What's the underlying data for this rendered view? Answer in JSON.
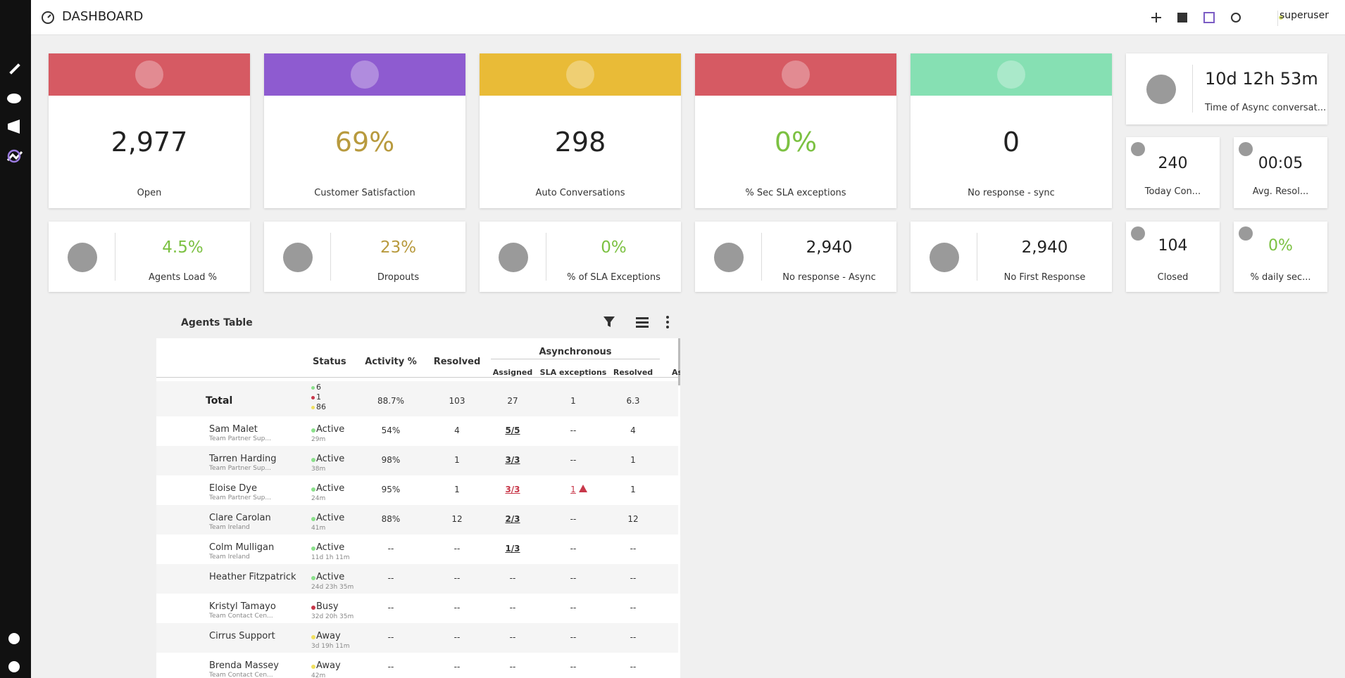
{
  "header": {
    "title": "DASHBOARD",
    "user": "superuser"
  },
  "big_cards": [
    {
      "value": "2,977",
      "label": "Open",
      "color": "#d65a63",
      "value_color": "#222222"
    },
    {
      "value": "69%",
      "label": "Customer Satisfaction",
      "color": "#8e5bd0",
      "value_color": "#b89a3e"
    },
    {
      "value": "298",
      "label": "Auto Conversations",
      "color": "#e9bb37",
      "value_color": "#222222"
    },
    {
      "value": "0%",
      "label": "% Sec SLA exceptions",
      "color": "#d65a63",
      "value_color": "#7cc142"
    },
    {
      "value": "0",
      "label": "No response - sync",
      "color": "#86e0b3",
      "value_color": "#222222"
    }
  ],
  "time_card": {
    "value": "10d 12h 53m",
    "label": "Time of Async conversat..."
  },
  "small_cards": [
    {
      "value": "240",
      "label": "Today Con...",
      "value_color": "#222222"
    },
    {
      "value": "00:05",
      "label": "Avg. Resol...",
      "value_color": "#222222"
    },
    {
      "value": "104",
      "label": "Closed",
      "value_color": "#222222"
    },
    {
      "value": "0%",
      "label": "% daily sec...",
      "value_color": "#7cc142"
    }
  ],
  "row_cards": [
    {
      "value": "4.5%",
      "label": "Agents Load %",
      "value_color": "#7cc142"
    },
    {
      "value": "23%",
      "label": "Dropouts",
      "value_color": "#b89a3e"
    },
    {
      "value": "0%",
      "label": "% of SLA Exceptions",
      "value_color": "#7cc142"
    },
    {
      "value": "2,940",
      "label": "No response - Async",
      "value_color": "#222222"
    },
    {
      "value": "2,940",
      "label": "No First Response",
      "value_color": "#222222"
    }
  ],
  "table": {
    "title": "Agents Table",
    "columns": [
      "Status",
      "Activity %",
      "Resolved"
    ],
    "group": "Asynchronous",
    "subcolumns": [
      "Assigned",
      "SLA exceptions",
      "Resolved",
      "As"
    ],
    "total": {
      "label": "Total",
      "status_counts": [
        "6",
        "1",
        "86"
      ],
      "activity": "88.7%",
      "resolved": "103",
      "assigned": "27",
      "sla": "1",
      "async_resolved": "6.3"
    },
    "rows": [
      {
        "name": "Sam Malet",
        "team": "Team Partner Sup...",
        "status": "Active",
        "since": "29m",
        "activity": "54%",
        "resolved": "4",
        "assigned": "5/5",
        "sla": "--",
        "async_resolved": "4",
        "alert": false
      },
      {
        "name": "Tarren Harding",
        "team": "Team Partner Sup...",
        "status": "Active",
        "since": "38m",
        "activity": "98%",
        "resolved": "1",
        "assigned": "3/3",
        "sla": "--",
        "async_resolved": "1",
        "alert": false
      },
      {
        "name": "Eloise Dye",
        "team": "Team Partner Sup...",
        "status": "Active",
        "since": "24m",
        "activity": "95%",
        "resolved": "1",
        "assigned": "3/3",
        "sla": "1",
        "async_resolved": "1",
        "alert": true
      },
      {
        "name": "Clare Carolan",
        "team": "Team Ireland",
        "status": "Active",
        "since": "41m",
        "activity": "88%",
        "resolved": "12",
        "assigned": "2/3",
        "sla": "--",
        "async_resolved": "12",
        "alert": false
      },
      {
        "name": "Colm Mulligan",
        "team": "Team Ireland",
        "status": "Active",
        "since": "11d 1h 11m",
        "activity": "--",
        "resolved": "--",
        "assigned": "1/3",
        "sla": "--",
        "async_resolved": "--",
        "alert": false
      },
      {
        "name": "Heather Fitzpatrick",
        "team": "",
        "status": "Active",
        "since": "24d 23h 35m",
        "activity": "--",
        "resolved": "--",
        "assigned": "--",
        "sla": "--",
        "async_resolved": "--",
        "alert": false
      },
      {
        "name": "Kristyl Tamayo",
        "team": "Team Contact Cen...",
        "status": "Busy",
        "since": "32d 20h 35m",
        "activity": "--",
        "resolved": "--",
        "assigned": "--",
        "sla": "--",
        "async_resolved": "--",
        "alert": false
      },
      {
        "name": "Cirrus Support",
        "team": "",
        "status": "Away",
        "since": "3d 19h 11m",
        "activity": "--",
        "resolved": "--",
        "assigned": "--",
        "sla": "--",
        "async_resolved": "--",
        "alert": false
      },
      {
        "name": "Brenda Massey",
        "team": "Team Contact Cen...",
        "status": "Away",
        "since": "42m",
        "activity": "--",
        "resolved": "--",
        "assigned": "--",
        "sla": "--",
        "async_resolved": "--",
        "alert": false
      }
    ]
  }
}
